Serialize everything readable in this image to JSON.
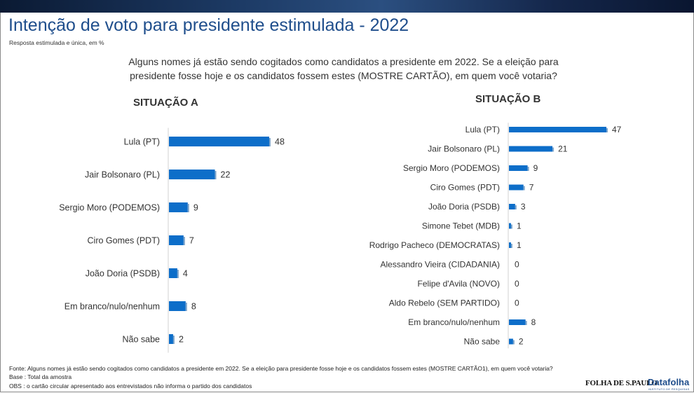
{
  "title": "Intenção de voto para presidente estimulada - 2022",
  "subtitle": "Resposta estimulada e única, em %",
  "question_line1": "Alguns nomes já estão sendo cogitados como candidatos a presidente em 2022. Se a eleição para",
  "question_line2": "presidente fosse hoje e os candidatos fossem estes (MOSTRE CARTÃO), em quem você votaria?",
  "footer": {
    "source": "Fonte: Alguns nomes já estão sendo cogitados como candidatos a presidente em 2022. Se a eleição para presidente fosse hoje e os candidatos fossem estes (MOSTRE CARTÃO1), em quem você votaria?",
    "base": "Base : Total da amostra",
    "obs": "OBS : o cartão circular apresentado aos entrevistados não informa o partido dos candidatos"
  },
  "logos": {
    "folha": "FOLHA DE S.PAULO",
    "datafolha": "Datafolha",
    "datafolha_sub": "INSTITUTO DE PESQUISAS"
  },
  "colors": {
    "bar": "#0d6ec9",
    "title": "#1f4e8c"
  },
  "chart_data": [
    {
      "type": "bar",
      "orientation": "horizontal",
      "title": "SITUAÇÃO A",
      "categories": [
        "Lula (PT)",
        "Jair Bolsonaro (PL)",
        "Sergio Moro (PODEMOS)",
        "Ciro Gomes (PDT)",
        "João Doria (PSDB)",
        "Em branco/nulo/nenhum",
        "Não sabe"
      ],
      "values": [
        48,
        22,
        9,
        7,
        4,
        8,
        2
      ],
      "xlim": [
        0,
        48
      ],
      "grid": false,
      "data_labels": true
    },
    {
      "type": "bar",
      "orientation": "horizontal",
      "title": "SITUAÇÃO B",
      "categories": [
        "Lula (PT)",
        "Jair Bolsonaro (PL)",
        "Sergio Moro (PODEMOS)",
        "Ciro Gomes (PDT)",
        "João Doria (PSDB)",
        "Simone Tebet (MDB)",
        "Rodrigo Pacheco (DEMOCRATAS)",
        "Alessandro Vieira (CIDADANIA)",
        "Felipe d'Avila (NOVO)",
        "Aldo Rebelo (SEM PARTIDO)",
        "Em branco/nulo/nenhum",
        "Não sabe"
      ],
      "values": [
        47,
        21,
        9,
        7,
        3,
        1,
        1,
        0,
        0,
        0,
        8,
        2
      ],
      "xlim": [
        0,
        47
      ],
      "grid": false,
      "data_labels": true
    }
  ]
}
